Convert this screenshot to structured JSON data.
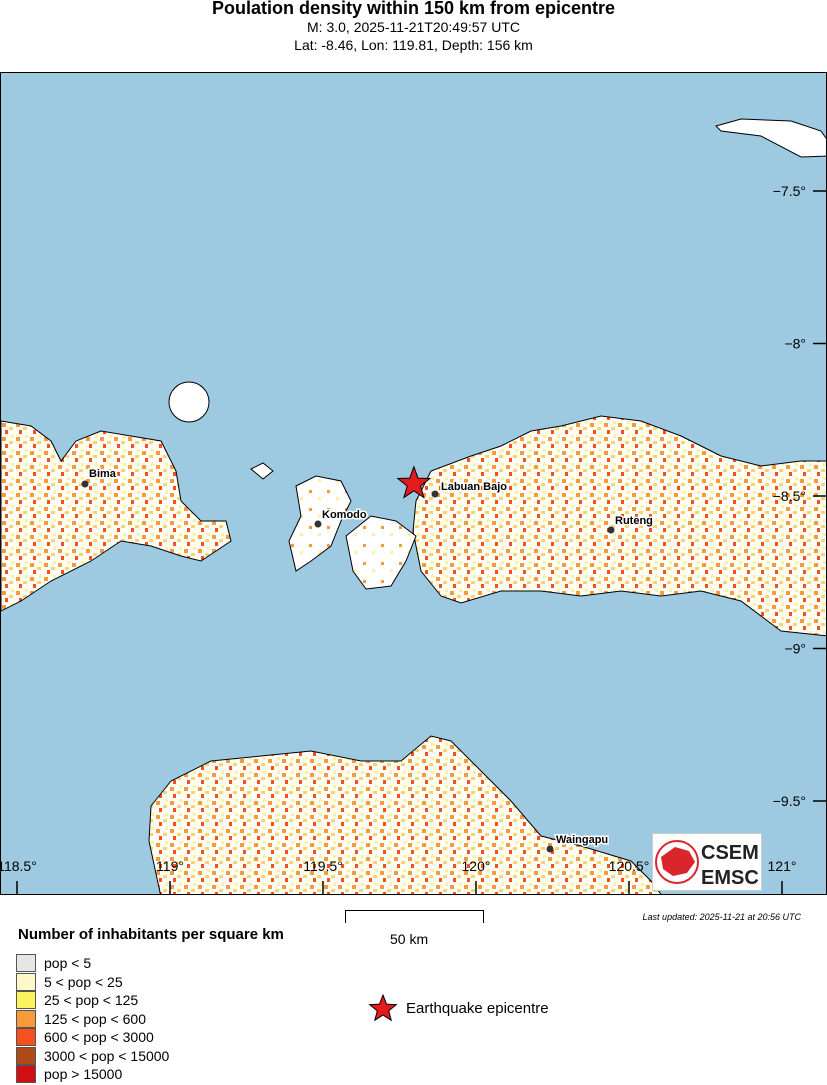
{
  "header": {
    "title": "Poulation density within 150 km from epicentre",
    "line1": "M: 3.0,  2025-11-21T20:49:57 UTC",
    "line2": "Lat: -8.46, Lon: 119.81, Depth: 156 km"
  },
  "map": {
    "epicentre": {
      "lat": -8.46,
      "lon": 119.81
    },
    "lon_ticks": [
      "118.5°",
      "119°",
      "119.5°",
      "120°",
      "120.5°",
      "121°"
    ],
    "lat_ticks": [
      "−7.5°",
      "−8°",
      "−8.5°",
      "−9°",
      "−9.5°"
    ],
    "places": [
      "Bima",
      "Komodo",
      "Labuan Bajo",
      "Ruteng",
      "Waingapu"
    ],
    "colors": {
      "sea": "#9ecae1",
      "land": "#ffffff",
      "epicentre": "#e41a1c"
    }
  },
  "logo": {
    "top": "CSEM",
    "bottom": "EMSC"
  },
  "scale": {
    "label": "50 km"
  },
  "updated": "Last updated: 2025-11-21 at 20:56 UTC",
  "legend": {
    "title": "Number of inhabitants per square km",
    "items": [
      {
        "label": "pop < 5",
        "color": "#e6e6e6"
      },
      {
        "label": "5 < pop < 25",
        "color": "#fdf8c8"
      },
      {
        "label": "25 < pop < 125",
        "color": "#fbf35e"
      },
      {
        "label": "125 < pop < 600",
        "color": "#f99a3a"
      },
      {
        "label": "600 < pop < 3000",
        "color": "#f5501e"
      },
      {
        "label": "3000 < pop < 15000",
        "color": "#b04a18"
      },
      {
        "label": "pop > 15000",
        "color": "#d01010"
      }
    ],
    "epicentre_label": "Earthquake epicentre"
  }
}
